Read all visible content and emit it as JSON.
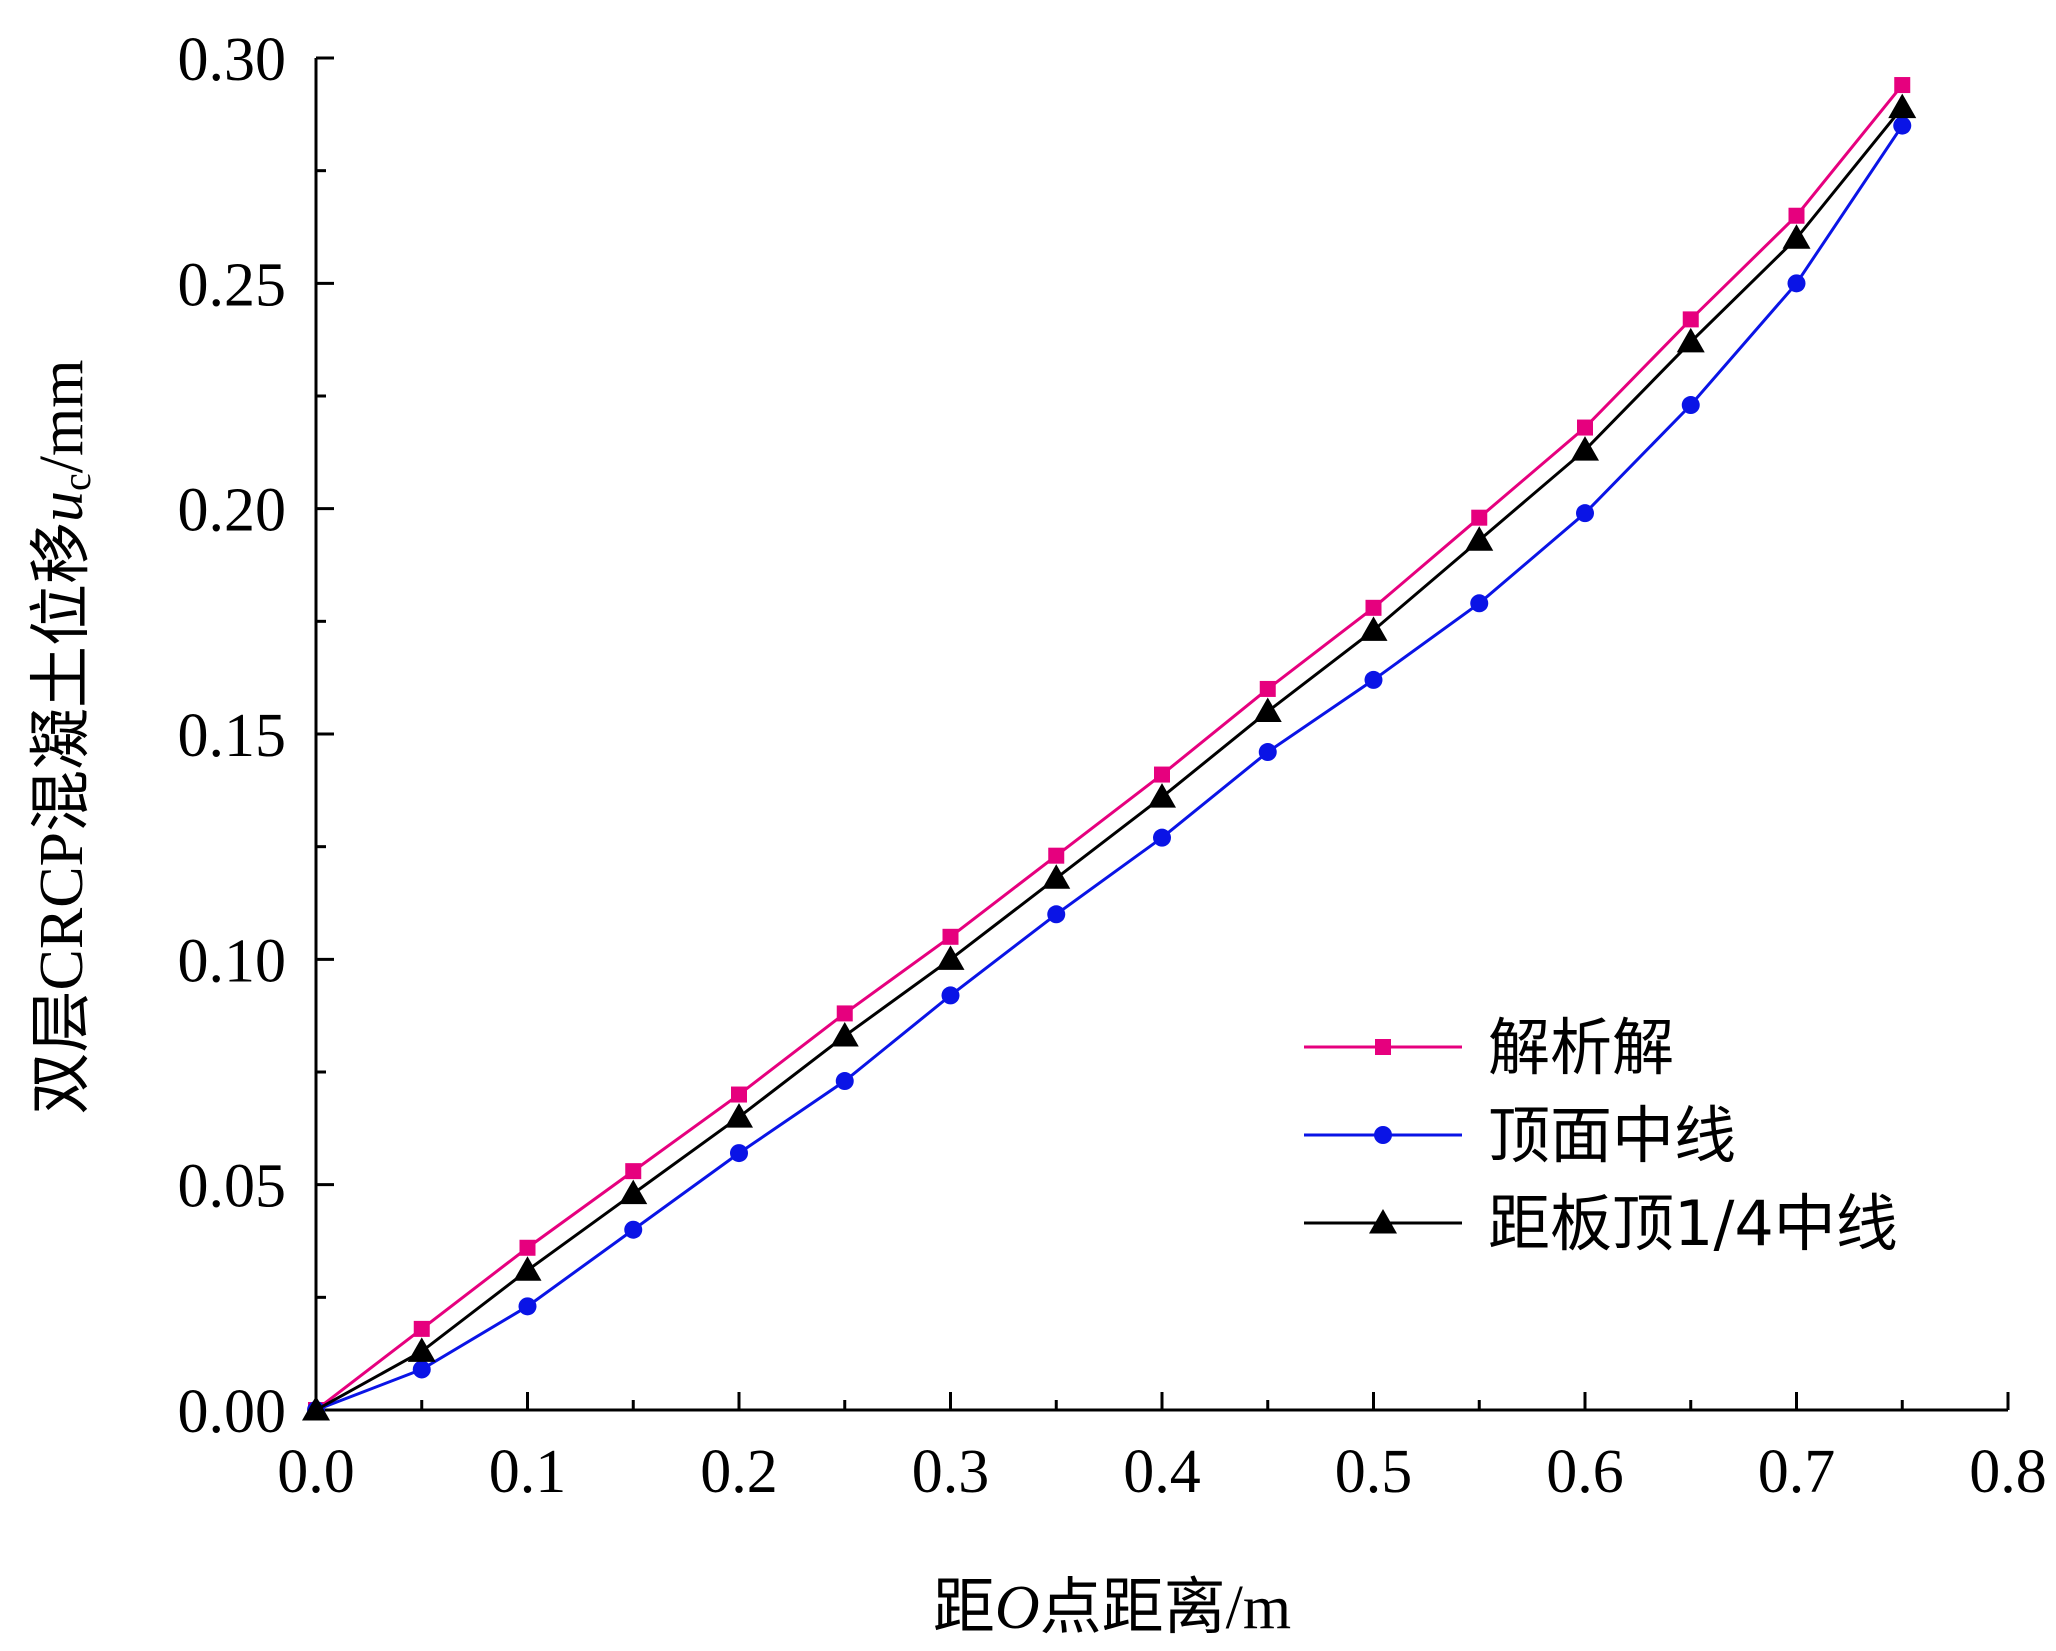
{
  "chart_data": {
    "type": "line",
    "xlabel": "距O点距离/m",
    "ylabel": "双层CRCP混凝土位移u_c/mm",
    "ylabel_prefix": "双层CRCP混凝土位移",
    "ylabel_var": "u",
    "ylabel_sub": "c",
    "ylabel_unit": "/mm",
    "xlabel_prefix": "距",
    "xlabel_var": "O",
    "xlabel_suffix": "点距离/m",
    "xlim": [
      0.0,
      0.8
    ],
    "ylim": [
      0.0,
      0.3
    ],
    "xticks": [
      "0.0",
      "0.1",
      "0.2",
      "0.3",
      "0.4",
      "0.5",
      "0.6",
      "0.7",
      "0.8"
    ],
    "yticks": [
      "0.00",
      "0.05",
      "0.10",
      "0.15",
      "0.20",
      "0.25",
      "0.30"
    ],
    "grid": false,
    "legend_position": "lower-right",
    "x": [
      0.0,
      0.05,
      0.1,
      0.15,
      0.2,
      0.25,
      0.3,
      0.35,
      0.4,
      0.45,
      0.5,
      0.55,
      0.6,
      0.65,
      0.7,
      0.75
    ],
    "series": [
      {
        "name": "解析解",
        "color": "#e6007e",
        "marker": "square",
        "values": [
          0.0,
          0.018,
          0.036,
          0.053,
          0.07,
          0.088,
          0.105,
          0.123,
          0.141,
          0.16,
          0.178,
          0.198,
          0.218,
          0.242,
          0.265,
          0.294
        ]
      },
      {
        "name": "顶面中线",
        "color": "#0a14e6",
        "marker": "circle",
        "values": [
          0.0,
          0.009,
          0.023,
          0.04,
          0.057,
          0.073,
          0.092,
          0.11,
          0.127,
          0.146,
          0.162,
          0.179,
          0.199,
          0.223,
          0.25,
          0.285
        ]
      },
      {
        "name": "距板顶1/4中线",
        "color": "#000000",
        "marker": "triangle",
        "values": [
          0.0,
          0.013,
          0.031,
          0.048,
          0.065,
          0.083,
          0.1,
          0.118,
          0.136,
          0.155,
          0.173,
          0.193,
          0.213,
          0.237,
          0.26,
          0.289
        ]
      }
    ]
  }
}
